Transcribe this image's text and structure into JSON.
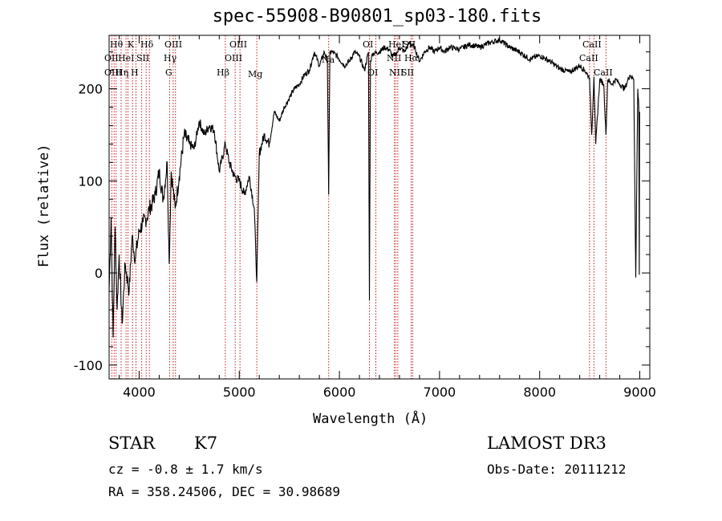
{
  "chart_data": {
    "type": "line",
    "title": "spec-55908-B90801_sp03-180.fits",
    "xlabel": "Wavelength (Å)",
    "ylabel": "Flux (relative)",
    "xlim": [
      3700,
      9100
    ],
    "ylim": [
      -115,
      258
    ],
    "xticks": [
      4000,
      5000,
      6000,
      7000,
      8000,
      9000
    ],
    "yticks": [
      -100,
      0,
      100,
      200
    ],
    "series": [
      {
        "name": "flux",
        "x": [
          3700,
          3720,
          3740,
          3760,
          3780,
          3800,
          3830,
          3860,
          3900,
          3930,
          3960,
          4000,
          4040,
          4080,
          4100,
          4130,
          4160,
          4200,
          4240,
          4280,
          4300,
          4320,
          4340,
          4360,
          4400,
          4450,
          4500,
          4550,
          4600,
          4650,
          4700,
          4750,
          4800,
          4861,
          4900,
          4950,
          5000,
          5050,
          5100,
          5150,
          5175,
          5200,
          5250,
          5300,
          5350,
          5400,
          5450,
          5500,
          5550,
          5600,
          5650,
          5700,
          5750,
          5800,
          5850,
          5880,
          5893,
          5905,
          5930,
          5980,
          6050,
          6100,
          6150,
          6200,
          6250,
          6290,
          6300,
          6310,
          6330,
          6400,
          6450,
          6500,
          6530,
          6563,
          6580,
          6600,
          6650,
          6700,
          6750,
          6800,
          6850,
          6900,
          6950,
          7000,
          7050,
          7100,
          7200,
          7300,
          7400,
          7500,
          7600,
          7700,
          7800,
          7900,
          8000,
          8100,
          8200,
          8300,
          8400,
          8450,
          8498,
          8520,
          8542,
          8560,
          8600,
          8640,
          8662,
          8680,
          8720,
          8760,
          8800,
          8850,
          8900,
          8940,
          8960,
          8980,
          8990,
          8995,
          8998
        ],
        "y": [
          -20,
          60,
          -70,
          50,
          -40,
          20,
          -55,
          10,
          -20,
          40,
          15,
          45,
          55,
          60,
          70,
          75,
          85,
          110,
          80,
          120,
          10,
          110,
          90,
          70,
          105,
          150,
          140,
          135,
          165,
          150,
          160,
          155,
          110,
          140,
          120,
          105,
          100,
          85,
          105,
          70,
          -10,
          130,
          150,
          140,
          175,
          165,
          180,
          190,
          200,
          205,
          215,
          220,
          240,
          225,
          240,
          230,
          85,
          240,
          240,
          235,
          225,
          230,
          240,
          235,
          220,
          240,
          -30,
          230,
          238,
          240,
          245,
          242,
          235,
          238,
          240,
          245,
          240,
          250,
          245,
          230,
          240,
          245,
          240,
          245,
          240,
          245,
          243,
          248,
          245,
          250,
          253,
          245,
          240,
          232,
          236,
          230,
          222,
          218,
          225,
          220,
          212,
          150,
          213,
          140,
          210,
          205,
          150,
          210,
          205,
          210,
          205,
          200,
          215,
          210,
          -5,
          200,
          180,
          -2,
          175
        ]
      }
    ],
    "lines": [
      {
        "wave": 3727,
        "labels": [
          "OII"
        ]
      },
      {
        "wave": 3750,
        "labels": [
          "Hθ"
        ]
      },
      {
        "wave": 3770,
        "labels": [
          "Hη"
        ]
      },
      {
        "wave": 3820,
        "labels": [
          "HeI"
        ]
      },
      {
        "wave": 3869,
        "labels": [
          "OIII"
        ]
      },
      {
        "wave": 3889,
        "labels": [
          "Hζ"
        ]
      },
      {
        "wave": 3934,
        "labels": [
          "K"
        ]
      },
      {
        "wave": 3968,
        "labels": [
          "H"
        ]
      },
      {
        "wave": 4026,
        "labels": [
          "HeI"
        ]
      },
      {
        "wave": 4070,
        "labels": [
          "SII"
        ]
      },
      {
        "wave": 4102,
        "labels": [
          "Hδ"
        ]
      },
      {
        "wave": 4304,
        "labels": [
          "G"
        ]
      },
      {
        "wave": 4340,
        "labels": [
          "Hγ"
        ]
      },
      {
        "wave": 4363,
        "labels": [
          "OIII"
        ]
      },
      {
        "wave": 4861,
        "labels": [
          "Hβ"
        ]
      },
      {
        "wave": 4959,
        "labels": [
          "OIII"
        ]
      },
      {
        "wave": 5007,
        "labels": [
          "OIII"
        ]
      },
      {
        "wave": 5175,
        "labels": [
          "Mg"
        ]
      },
      {
        "wave": 5893,
        "labels": [
          "Na"
        ]
      },
      {
        "wave": 6300,
        "labels": [
          "OI"
        ]
      },
      {
        "wave": 6364,
        "labels": [
          "OI"
        ]
      },
      {
        "wave": 6548,
        "labels": [
          "NII"
        ]
      },
      {
        "wave": 6563,
        "labels": [
          "Hα"
        ]
      },
      {
        "wave": 6583,
        "labels": [
          "NII"
        ]
      },
      {
        "wave": 6717,
        "labels": [
          "SII"
        ]
      },
      {
        "wave": 6731,
        "labels": [
          "SII"
        ]
      },
      {
        "wave": 8498,
        "labels": [
          "CaII"
        ]
      },
      {
        "wave": 8542,
        "labels": [
          "CaII"
        ]
      },
      {
        "wave": 8662,
        "labels": [
          "CaII"
        ]
      }
    ]
  },
  "line_label_text": [
    "Hθ",
    "K",
    "Hδ",
    "OIII",
    "OIII",
    "OII",
    "HeI",
    "SII",
    "Hγ",
    "OIII",
    "Na",
    "OIII",
    "Hη",
    "H",
    "G",
    "Hβ",
    "Mg",
    "OI",
    "HeI",
    "OI",
    "NII",
    "NII",
    "SII",
    "SII",
    "Hα",
    "CaII",
    "CaII",
    "CaII",
    "Hζ"
  ],
  "info": {
    "class": "STAR",
    "subclass": "K7",
    "redshift": "cz = -0.8 ± 1.7 km/s",
    "coords": "RA = 358.24506, DEC =  30.98689",
    "survey": "LAMOST DR3",
    "obs_date": "Obs-Date: 20111212"
  },
  "colors": {
    "spectrum": "#000000",
    "line_marker": "#c00000",
    "axes": "#000000"
  }
}
